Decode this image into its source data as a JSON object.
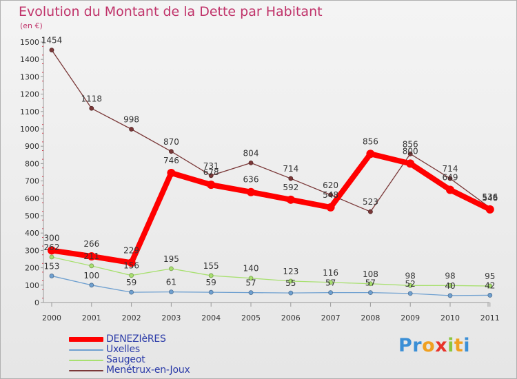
{
  "title": "Evolution du Montant de la Dette par Habitant",
  "subtitle": "(en €)",
  "brand": "Proxiti",
  "brand_colors": [
    "#3b8fd6",
    "#3b8fd6",
    "#f0a020",
    "#e8332a",
    "#8cc63f",
    "#f0a020",
    "#3b8fd6"
  ],
  "chart_data": {
    "type": "line",
    "title": "Evolution du Montant de la Dette par Habitant",
    "subtitle": "(en €)",
    "xlabel": "",
    "ylabel": "",
    "grid": false,
    "ylim": [
      0,
      1500
    ],
    "yticks": [
      0,
      100,
      200,
      300,
      400,
      500,
      600,
      700,
      800,
      900,
      1000,
      1100,
      1200,
      1300,
      1400,
      1500
    ],
    "categories": [
      "2000",
      "2001",
      "2002",
      "2003",
      "2004",
      "2005",
      "2006",
      "2007",
      "2008",
      "2009",
      "2010",
      "2011"
    ],
    "series": [
      {
        "name": "DENEZIèRES",
        "color": "#ff0000",
        "emphasis": true,
        "values": [
          300,
          266,
          229,
          746,
          678,
          636,
          592,
          548,
          856,
          800,
          649,
          536
        ]
      },
      {
        "name": "Uxelles",
        "color": "#6fa0d0",
        "emphasis": false,
        "values": [
          153,
          100,
          59,
          61,
          59,
          57,
          55,
          57,
          57,
          52,
          40,
          42
        ]
      },
      {
        "name": "Saugeot",
        "color": "#a8e070",
        "emphasis": false,
        "values": [
          262,
          211,
          156,
          195,
          155,
          140,
          123,
          116,
          108,
          98,
          98,
          95
        ]
      },
      {
        "name": "Menétrux-en-Joux",
        "color": "#7a3838",
        "emphasis": false,
        "values": [
          1454,
          1118,
          998,
          870,
          731,
          804,
          714,
          620,
          523,
          856,
          714,
          546
        ]
      }
    ]
  }
}
